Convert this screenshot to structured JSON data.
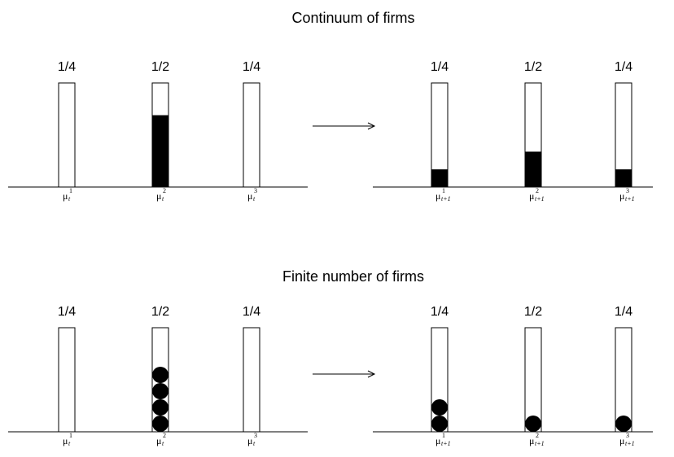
{
  "panels": [
    {
      "title": "Continuum of firms",
      "before": {
        "bars": [
          {
            "top_label": "1/4",
            "mu_sup": "1",
            "mu_sub": "t",
            "fill_fraction": 0
          },
          {
            "top_label": "1/2",
            "mu_sup": "2",
            "mu_sub": "t",
            "fill_fraction": 0.69
          },
          {
            "top_label": "1/4",
            "mu_sup": "3",
            "mu_sub": "t",
            "fill_fraction": 0
          }
        ]
      },
      "after": {
        "bars": [
          {
            "top_label": "1/4",
            "mu_sup": "1",
            "mu_sub": "t+1",
            "fill_fraction": 0.17
          },
          {
            "top_label": "1/2",
            "mu_sup": "2",
            "mu_sub": "t+1",
            "fill_fraction": 0.34
          },
          {
            "top_label": "1/4",
            "mu_sup": "3",
            "mu_sub": "t+1",
            "fill_fraction": 0.17
          }
        ]
      }
    },
    {
      "title": "Finite number of firms",
      "before": {
        "bars": [
          {
            "top_label": "1/4",
            "mu_sup": "1",
            "mu_sub": "t",
            "dots": 0
          },
          {
            "top_label": "1/2",
            "mu_sup": "2",
            "mu_sub": "t",
            "dots": 4
          },
          {
            "top_label": "1/4",
            "mu_sup": "3",
            "mu_sub": "t",
            "dots": 0
          }
        ]
      },
      "after": {
        "bars": [
          {
            "top_label": "1/4",
            "mu_sup": "1",
            "mu_sub": "t+1",
            "dots": 2
          },
          {
            "top_label": "1/2",
            "mu_sup": "2",
            "mu_sub": "t+1",
            "dots": 1
          },
          {
            "top_label": "1/4",
            "mu_sup": "3",
            "mu_sub": "t+1",
            "dots": 1
          }
        ]
      }
    }
  ],
  "mu_symbol": "μ",
  "colors": {
    "ink": "#000000",
    "background": "#ffffff"
  }
}
